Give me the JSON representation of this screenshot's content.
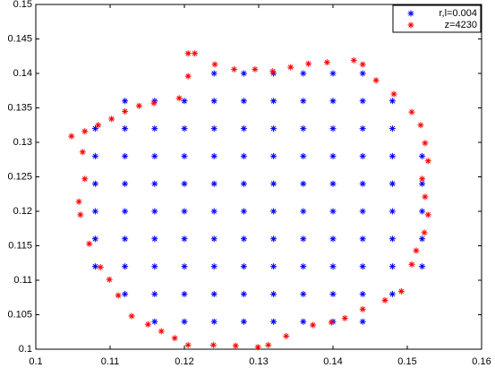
{
  "chart_data": {
    "type": "scatter",
    "xlim": [
      0.1,
      0.16
    ],
    "xticks": [
      0.1,
      0.11,
      0.12,
      0.13,
      0.14,
      0.15,
      0.16
    ],
    "ylim": [
      0.1,
      0.15
    ],
    "yticks": [
      0.1,
      0.105,
      0.11,
      0.115,
      0.12,
      0.125,
      0.13,
      0.135,
      0.14,
      0.145,
      0.15
    ],
    "grid": false,
    "legend": "upper right",
    "series": [
      {
        "name": "r,l=0.004",
        "color": "#0000ff",
        "x": [
          0.124,
          0.128,
          0.132,
          0.136,
          0.14,
          0.144,
          0.112,
          0.116,
          0.12,
          0.124,
          0.128,
          0.132,
          0.136,
          0.14,
          0.144,
          0.148,
          0.108,
          0.112,
          0.116,
          0.12,
          0.124,
          0.128,
          0.132,
          0.136,
          0.14,
          0.144,
          0.148,
          0.108,
          0.112,
          0.116,
          0.12,
          0.124,
          0.128,
          0.132,
          0.136,
          0.14,
          0.144,
          0.148,
          0.152,
          0.108,
          0.112,
          0.116,
          0.12,
          0.124,
          0.128,
          0.132,
          0.136,
          0.14,
          0.144,
          0.148,
          0.152,
          0.108,
          0.112,
          0.116,
          0.12,
          0.124,
          0.128,
          0.132,
          0.136,
          0.14,
          0.144,
          0.148,
          0.152,
          0.108,
          0.112,
          0.116,
          0.12,
          0.124,
          0.128,
          0.132,
          0.136,
          0.14,
          0.144,
          0.148,
          0.152,
          0.108,
          0.112,
          0.116,
          0.12,
          0.124,
          0.128,
          0.132,
          0.136,
          0.14,
          0.144,
          0.148,
          0.152,
          0.112,
          0.116,
          0.12,
          0.124,
          0.128,
          0.132,
          0.136,
          0.14,
          0.144,
          0.148,
          0.116,
          0.12,
          0.124,
          0.128,
          0.132,
          0.136,
          0.14,
          0.144
        ],
        "values": [
          0.14,
          0.14,
          0.14,
          0.14,
          0.14,
          0.14,
          0.136,
          0.136,
          0.136,
          0.136,
          0.136,
          0.136,
          0.136,
          0.136,
          0.136,
          0.136,
          0.132,
          0.132,
          0.132,
          0.132,
          0.132,
          0.132,
          0.132,
          0.132,
          0.132,
          0.132,
          0.132,
          0.128,
          0.128,
          0.128,
          0.128,
          0.128,
          0.128,
          0.128,
          0.128,
          0.128,
          0.128,
          0.128,
          0.128,
          0.124,
          0.124,
          0.124,
          0.124,
          0.124,
          0.124,
          0.124,
          0.124,
          0.124,
          0.124,
          0.124,
          0.124,
          0.12,
          0.12,
          0.12,
          0.12,
          0.12,
          0.12,
          0.12,
          0.12,
          0.12,
          0.12,
          0.12,
          0.12,
          0.116,
          0.116,
          0.116,
          0.116,
          0.116,
          0.116,
          0.116,
          0.116,
          0.116,
          0.116,
          0.116,
          0.116,
          0.112,
          0.112,
          0.112,
          0.112,
          0.112,
          0.112,
          0.112,
          0.112,
          0.112,
          0.112,
          0.112,
          0.112,
          0.108,
          0.108,
          0.108,
          0.108,
          0.108,
          0.108,
          0.108,
          0.108,
          0.108,
          0.108,
          0.104,
          0.104,
          0.104,
          0.104,
          0.104,
          0.104,
          0.104,
          0.104
        ]
      },
      {
        "name": "z=4230",
        "color": "#ff0000",
        "x": [
          0.1048,
          0.1066,
          0.1084,
          0.1102,
          0.112,
          0.1139,
          0.1159,
          0.1193,
          0.1205,
          0.1205,
          0.1214,
          0.1241,
          0.1267,
          0.1295,
          0.1319,
          0.1343,
          0.1367,
          0.1392,
          0.1428,
          0.144,
          0.1458,
          0.1482,
          0.1506,
          0.1518,
          0.1524,
          0.1528,
          0.152,
          0.1524,
          0.1528,
          0.1523,
          0.1512,
          0.1506,
          0.1492,
          0.147,
          0.144,
          0.1416,
          0.1398,
          0.1373,
          0.1337,
          0.1313,
          0.1299,
          0.1269,
          0.1239,
          0.1205,
          0.1187,
          0.1169,
          0.1151,
          0.1129,
          0.1111,
          0.1099,
          0.1087,
          0.1072,
          0.106,
          0.1058,
          0.1066,
          0.1063
        ],
        "values": [
          0.1309,
          0.1316,
          0.1325,
          0.1334,
          0.1345,
          0.1353,
          0.1357,
          0.1364,
          0.1396,
          0.1429,
          0.1429,
          0.1413,
          0.1406,
          0.1406,
          0.1403,
          0.1409,
          0.1414,
          0.1416,
          0.1419,
          0.1413,
          0.139,
          0.137,
          0.1344,
          0.1325,
          0.1299,
          0.1273,
          0.1247,
          0.1221,
          0.1195,
          0.1169,
          0.1143,
          0.1123,
          0.1084,
          0.1071,
          0.1058,
          0.1045,
          0.1039,
          0.1035,
          0.1019,
          0.1006,
          0.1003,
          0.1005,
          0.1006,
          0.1006,
          0.1016,
          0.1026,
          0.1036,
          0.1048,
          0.1078,
          0.1101,
          0.1119,
          0.1153,
          0.1195,
          0.1214,
          0.1247,
          0.1286
        ]
      }
    ]
  }
}
